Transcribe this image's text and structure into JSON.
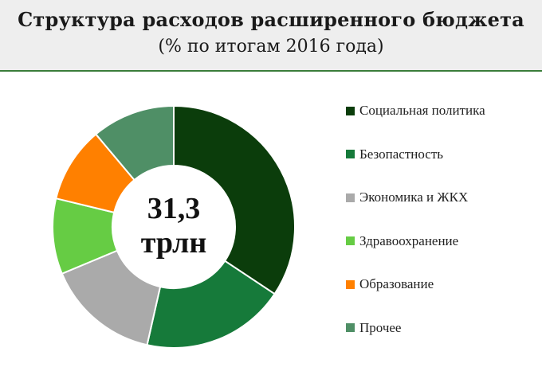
{
  "header": {
    "title": "Структура расходов расширенного бюджета",
    "subtitle": "(% по итогам 2016 года)"
  },
  "center": {
    "value": "31,3",
    "unit": "трлн"
  },
  "chart_data": {
    "type": "pie",
    "donut": true,
    "categories": [
      "Социальная  политика",
      "Безопастность",
      "Экономика и ЖКХ",
      "Здравоохранение",
      "Образование",
      "Прочее"
    ],
    "values": [
      34,
      19,
      15,
      10,
      10,
      11
    ],
    "colors": [
      "#0b3d0b",
      "#167a3a",
      "#aaaaaa",
      "#66cc44",
      "#ff8000",
      "#4f8f66"
    ],
    "legend_position": "right"
  }
}
